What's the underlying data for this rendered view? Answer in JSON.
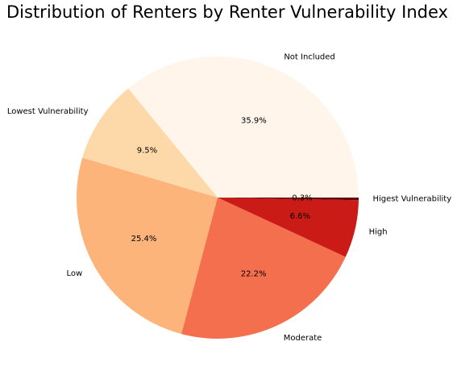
{
  "chart_data": {
    "type": "pie",
    "title": "Distribution of Renters by Renter Vulnerability Index",
    "slices": [
      {
        "label": "Not Included",
        "value": 35.9,
        "pct_label": "35.9%",
        "color": "#fff5eb"
      },
      {
        "label": "Lowest Vulnerability",
        "value": 9.5,
        "pct_label": "9.5%",
        "color": "#fdd9a9"
      },
      {
        "label": "Low",
        "value": 25.4,
        "pct_label": "25.4%",
        "color": "#fdb47b"
      },
      {
        "label": "Moderate",
        "value": 22.2,
        "pct_label": "22.2%",
        "color": "#f46f4e"
      },
      {
        "label": "High",
        "value": 6.6,
        "pct_label": "6.6%",
        "color": "#cb1b16"
      },
      {
        "label": "Higest Vulnerability",
        "value": 0.3,
        "pct_label": "0.3%",
        "color": "#67000d"
      }
    ],
    "start_angle_deg": 0,
    "direction": "counterclockwise",
    "legend": "none"
  }
}
